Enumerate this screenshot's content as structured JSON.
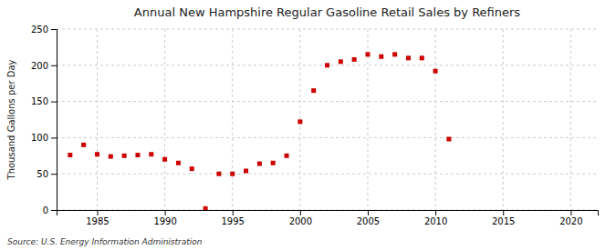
{
  "chart_data": {
    "type": "scatter",
    "title": "Annual New Hampshire Regular Gasoline Retail Sales by Refiners",
    "ylabel": "Thousand Gallons per Day",
    "annotation": "Source: U.S. Energy Information Administration",
    "x": [
      1983,
      1984,
      1985,
      1986,
      1987,
      1988,
      1989,
      1990,
      1991,
      1992,
      1993,
      1994,
      1995,
      1996,
      1997,
      1998,
      1999,
      2000,
      2001,
      2002,
      2003,
      2004,
      2005,
      2006,
      2007,
      2008,
      2009,
      2010,
      2011
    ],
    "values": [
      76,
      90,
      77,
      74,
      75,
      76,
      77,
      70,
      65,
      57,
      2,
      50,
      50,
      54,
      64,
      65,
      75,
      122,
      165,
      200,
      205,
      208,
      215,
      212,
      215,
      210,
      210,
      192,
      98
    ],
    "color": "#cc0000",
    "marker": "square",
    "xlim": [
      1982,
      2022
    ],
    "ylim": [
      0,
      250
    ],
    "xticks": [
      1985,
      1990,
      1995,
      2000,
      2005,
      2010,
      2015,
      2020
    ],
    "yticks": [
      0,
      50,
      100,
      150,
      200,
      250
    ],
    "grid": true
  }
}
